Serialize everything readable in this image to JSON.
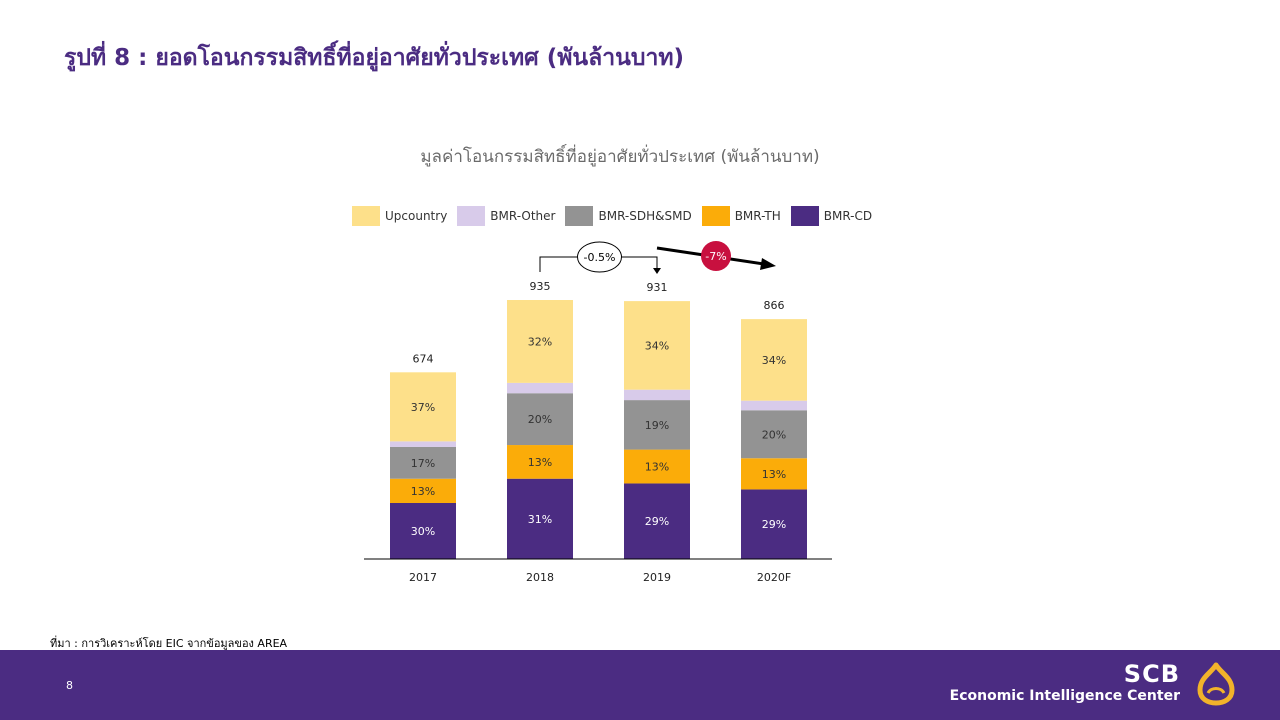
{
  "page": {
    "title": "รูปที่ 8 : ยอดโอนกรรมสิทธิ์ที่อยู่อาศัยทั่วประเทศ (พันล้านบาท)",
    "source": "ที่มา : การวิเคราะห์โดย EIC จากข้อมูลของ AREA",
    "page_number": "8"
  },
  "brand": {
    "name": "SCB",
    "subtitle": "Economic Intelligence Center",
    "logo_icon": "scb-lotus-icon"
  },
  "colors": {
    "Upcountry": "#fde08a",
    "BMR-Other": "#d8cbea",
    "BMR-SDH&SMD": "#939393",
    "BMR-TH": "#fbac09",
    "BMR-CD": "#4b2c82",
    "accent": "#c8103f",
    "footer": "#4b2c82"
  },
  "chart_data": {
    "type": "bar",
    "stacked": true,
    "title": "มูลค่าโอนกรรมสิทธิ์ที่อยู่อาศัยทั่วประเทศ (พันล้านบาท)",
    "categories": [
      "2017",
      "2018",
      "2019",
      "2020F"
    ],
    "totals": [
      674,
      935,
      931,
      866
    ],
    "ylim": [
      0,
      935
    ],
    "legend_position": "top",
    "grid": false,
    "legend_order": [
      "Upcountry",
      "BMR-Other",
      "BMR-SDH&SMD",
      "BMR-TH",
      "BMR-CD"
    ],
    "series": [
      {
        "name": "BMR-CD",
        "share_pct": [
          30,
          31,
          29,
          29
        ],
        "labels": [
          "30%",
          "31%",
          "29%",
          "29%"
        ]
      },
      {
        "name": "BMR-TH",
        "share_pct": [
          13,
          13,
          13,
          13
        ],
        "labels": [
          "13%",
          "13%",
          "13%",
          "13%"
        ]
      },
      {
        "name": "BMR-SDH&SMD",
        "share_pct": [
          17,
          20,
          19,
          20
        ],
        "labels": [
          "17%",
          "20%",
          "19%",
          "20%"
        ]
      },
      {
        "name": "BMR-Other",
        "share_pct": [
          3,
          4,
          4,
          4
        ],
        "labels": [
          "",
          "",
          "",
          ""
        ]
      },
      {
        "name": "Upcountry",
        "share_pct": [
          37,
          32,
          34,
          34
        ],
        "labels": [
          "37%",
          "32%",
          "34%",
          "34%"
        ]
      }
    ],
    "annotations": [
      {
        "text": "-0.5%",
        "from": "2018",
        "to": "2019",
        "style": "bracket"
      },
      {
        "text": "-7%",
        "from": "2019",
        "to": "2020F",
        "style": "trend-arrow"
      }
    ]
  }
}
